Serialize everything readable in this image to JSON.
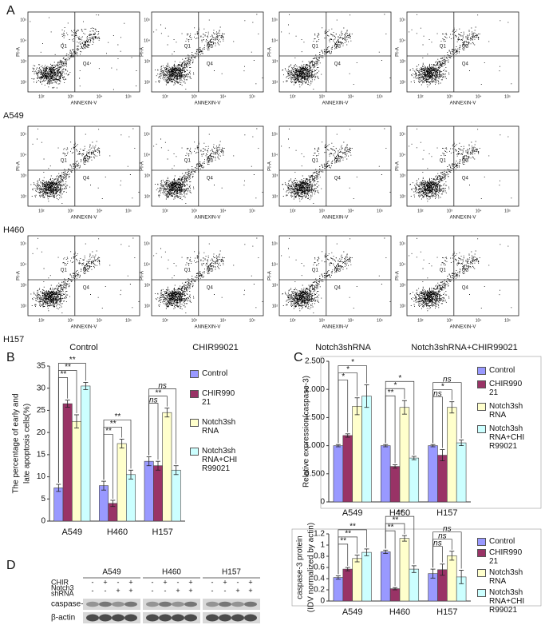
{
  "panel_labels": [
    "A",
    "B",
    "C",
    "D"
  ],
  "flow": {
    "rows": [
      "A549",
      "H460",
      "H157"
    ],
    "columns": [
      "Control",
      "CHIR99021",
      "Notch3shRNA",
      "Notch3shRNA+CHIR99021"
    ],
    "x_label": "ANNEXIN-V",
    "y_label": "PI-A",
    "quadrants": [
      "Q1",
      "Q2",
      "Q3",
      "Q4"
    ],
    "xticks": [
      "10²",
      "10³",
      "10⁴",
      "10⁵"
    ],
    "yticks": [
      "10²",
      "10³",
      "10⁴",
      "10⁵"
    ]
  },
  "chart_data": [
    {
      "type": "bar",
      "y_label": [
        "The percentage of early and",
        "late apoptosis cells(%)"
      ],
      "categories": [
        "A549",
        "H460",
        "H157"
      ],
      "series": [
        {
          "name": "Control",
          "color": "#9999ff",
          "values": [
            7.5,
            8,
            13.5
          ],
          "errors": [
            0.8,
            1,
            1
          ]
        },
        {
          "name": "CHIR99021",
          "color": "#993366",
          "values": [
            26.5,
            4,
            12.5
          ],
          "errors": [
            0.8,
            0.7,
            1
          ]
        },
        {
          "name": "Notch3shRNA",
          "color": "#ffffcc",
          "values": [
            22.5,
            17.5,
            24.5
          ],
          "errors": [
            1.5,
            1,
            1
          ]
        },
        {
          "name": "Notch3shRNA+CHIR99021",
          "color": "#ccffff",
          "values": [
            30.5,
            10.5,
            11.5
          ],
          "errors": [
            0.8,
            1,
            1
          ]
        }
      ],
      "ylim": [
        0,
        35
      ],
      "yticks": [
        0,
        5,
        10,
        15,
        20,
        25,
        30,
        35
      ],
      "significance": [
        [
          "**",
          "**",
          "**"
        ],
        [
          "**",
          "**",
          "**"
        ],
        [
          "ns",
          "**",
          "ns"
        ]
      ]
    },
    {
      "type": "bar",
      "y_label": [
        "Relative expression(caspase-3)"
      ],
      "categories": [
        "A549",
        "H460",
        "H157"
      ],
      "series": [
        {
          "name": "Control",
          "color": "#9999ff",
          "values": [
            1.0,
            1.0,
            1.0
          ],
          "errors": [
            0.02,
            0.02,
            0.02
          ]
        },
        {
          "name": "CHIR99021",
          "color": "#993366",
          "values": [
            1.18,
            0.63,
            0.83
          ],
          "errors": [
            0.03,
            0.03,
            0.1
          ]
        },
        {
          "name": "Notch3shRNA",
          "color": "#ffffcc",
          "values": [
            1.7,
            1.68,
            1.68
          ],
          "errors": [
            0.15,
            0.12,
            0.1
          ]
        },
        {
          "name": "Notch3shRNA+CHIR99021",
          "color": "#ccffff",
          "values": [
            1.88,
            0.78,
            1.05
          ],
          "errors": [
            0.2,
            0.03,
            0.05
          ]
        }
      ],
      "ylim": [
        0,
        2.5
      ],
      "yticks": [
        0,
        {
          "value": 0.5,
          "label": "0.500"
        },
        {
          "value": 1,
          "label": "1.000"
        },
        {
          "value": 1.5,
          "label": "1.500"
        },
        {
          "value": 2,
          "label": "2.000"
        },
        {
          "value": 2.5,
          "label": "2.500"
        }
      ],
      "significance": [
        [
          "*",
          "*",
          "*"
        ],
        [
          "**",
          "*",
          "*"
        ],
        [
          "ns",
          "*",
          "ns"
        ]
      ]
    },
    {
      "type": "bar",
      "y_label": [
        "caspase-3 protein",
        "(IDV normalized by actin)"
      ],
      "categories": [
        "A549",
        "H460",
        "H157"
      ],
      "series": [
        {
          "name": "Control",
          "color": "#9999ff",
          "values": [
            0.42,
            0.88,
            0.49
          ],
          "errors": [
            0.03,
            0.03,
            0.08
          ]
        },
        {
          "name": "CHIR99021",
          "color": "#993366",
          "values": [
            0.57,
            0.22,
            0.56
          ],
          "errors": [
            0.03,
            0.02,
            0.1
          ]
        },
        {
          "name": "Notch3shRNA",
          "color": "#ffffcc",
          "values": [
            0.76,
            1.12,
            0.81
          ],
          "errors": [
            0.06,
            0.05,
            0.08
          ]
        },
        {
          "name": "Notch3shRNA+CHIR99021",
          "color": "#ccffff",
          "values": [
            0.87,
            0.57,
            0.43
          ],
          "errors": [
            0.06,
            0.06,
            0.12
          ]
        }
      ],
      "ylim": [
        0,
        1.2
      ],
      "yticks": [
        0,
        0.2,
        0.4,
        0.6,
        0.8,
        1,
        1.2
      ],
      "significance": [
        [
          "**",
          "**",
          "**"
        ],
        [
          "**",
          "**",
          "**"
        ],
        [
          "ns",
          "ns",
          "ns"
        ]
      ]
    }
  ],
  "blot": {
    "groups": [
      "A549",
      "H460",
      "H157"
    ],
    "rows": [
      {
        "label": [
          "CHIR"
        ],
        "signs": [
          "-",
          "+",
          "-",
          "+"
        ]
      },
      {
        "label": [
          "Notch3",
          "shRNA"
        ],
        "signs": [
          "-",
          "-",
          "+",
          "+"
        ]
      }
    ],
    "bands": [
      "caspase-3",
      "β-actin"
    ]
  }
}
